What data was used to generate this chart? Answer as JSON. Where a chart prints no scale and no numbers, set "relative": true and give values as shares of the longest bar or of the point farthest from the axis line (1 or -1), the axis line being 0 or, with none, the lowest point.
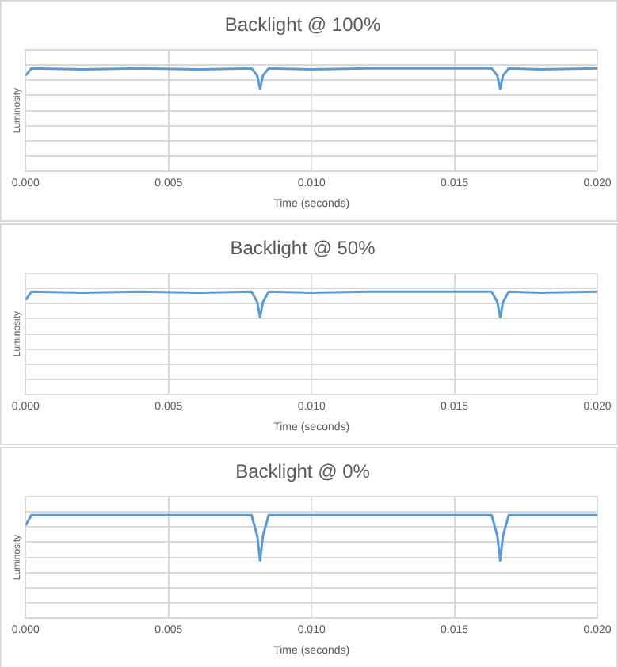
{
  "chart_data": [
    {
      "type": "line",
      "title": "Backlight @ 100%",
      "xlabel": "Time (seconds)",
      "ylabel": "Luminosity",
      "relative": true,
      "grid": true,
      "legend": false,
      "marker": "none",
      "line_style": "solid",
      "xlim": [
        0,
        0.02
      ],
      "xticks": [
        {
          "value": 0,
          "label": "0.000"
        },
        {
          "value": 0.005,
          "label": "0.005"
        },
        {
          "value": 0.01,
          "label": "0.010"
        },
        {
          "value": 0.015,
          "label": "0.015"
        },
        {
          "value": 0.02,
          "label": "0.020"
        }
      ],
      "x": [
        0,
        0.0002,
        0.002,
        0.004,
        0.006,
        0.0079,
        0.0081,
        0.0082,
        0.0083,
        0.0085,
        0.01,
        0.012,
        0.014,
        0.0163,
        0.0165,
        0.0166,
        0.0167,
        0.0169,
        0.018,
        0.02
      ],
      "series": [
        {
          "color": "#5b9bd5",
          "values": [
            0.93,
            1,
            0.99,
            1,
            0.99,
            1,
            0.93,
            0.8,
            0.93,
            1,
            0.99,
            1,
            1,
            1,
            0.93,
            0.8,
            0.93,
            1,
            0.99,
            1
          ]
        }
      ]
    },
    {
      "type": "line",
      "title": "Backlight @ 50%",
      "xlabel": "Time (seconds)",
      "ylabel": "Luminosity",
      "relative": true,
      "grid": true,
      "legend": false,
      "marker": "none",
      "line_style": "solid",
      "xlim": [
        0,
        0.02
      ],
      "xticks": [
        {
          "value": 0,
          "label": "0.000"
        },
        {
          "value": 0.005,
          "label": "0.005"
        },
        {
          "value": 0.01,
          "label": "0.010"
        },
        {
          "value": 0.015,
          "label": "0.015"
        },
        {
          "value": 0.02,
          "label": "0.020"
        }
      ],
      "x": [
        0,
        0.0002,
        0.002,
        0.004,
        0.006,
        0.0079,
        0.0081,
        0.0082,
        0.0083,
        0.0085,
        0.01,
        0.012,
        0.014,
        0.0163,
        0.0165,
        0.0166,
        0.0167,
        0.0169,
        0.018,
        0.02
      ],
      "series": [
        {
          "color": "#5b9bd5",
          "values": [
            0.92,
            1,
            0.99,
            1,
            0.99,
            1,
            0.9,
            0.75,
            0.9,
            1,
            0.99,
            1,
            1,
            1,
            0.9,
            0.75,
            0.9,
            1,
            0.99,
            1
          ]
        }
      ]
    },
    {
      "type": "line",
      "title": "Backlight @ 0%",
      "xlabel": "Time (seconds)",
      "ylabel": "Luminosity",
      "relative": true,
      "grid": true,
      "legend": false,
      "marker": "none",
      "line_style": "solid",
      "xlim": [
        0,
        0.02
      ],
      "xticks": [
        {
          "value": 0,
          "label": "0.000"
        },
        {
          "value": 0.005,
          "label": "0.005"
        },
        {
          "value": 0.01,
          "label": "0.010"
        },
        {
          "value": 0.015,
          "label": "0.015"
        },
        {
          "value": 0.02,
          "label": "0.020"
        }
      ],
      "x": [
        0,
        0.0002,
        0.002,
        0.004,
        0.006,
        0.0079,
        0.0081,
        0.0082,
        0.0083,
        0.0085,
        0.01,
        0.012,
        0.014,
        0.0163,
        0.0165,
        0.0166,
        0.0167,
        0.0169,
        0.018,
        0.02
      ],
      "series": [
        {
          "color": "#5b9bd5",
          "values": [
            0.9,
            1,
            1,
            1,
            1,
            1,
            0.8,
            0.56,
            0.8,
            1,
            1,
            1,
            1,
            1,
            0.8,
            0.56,
            0.8,
            1,
            1,
            1
          ]
        }
      ]
    }
  ]
}
